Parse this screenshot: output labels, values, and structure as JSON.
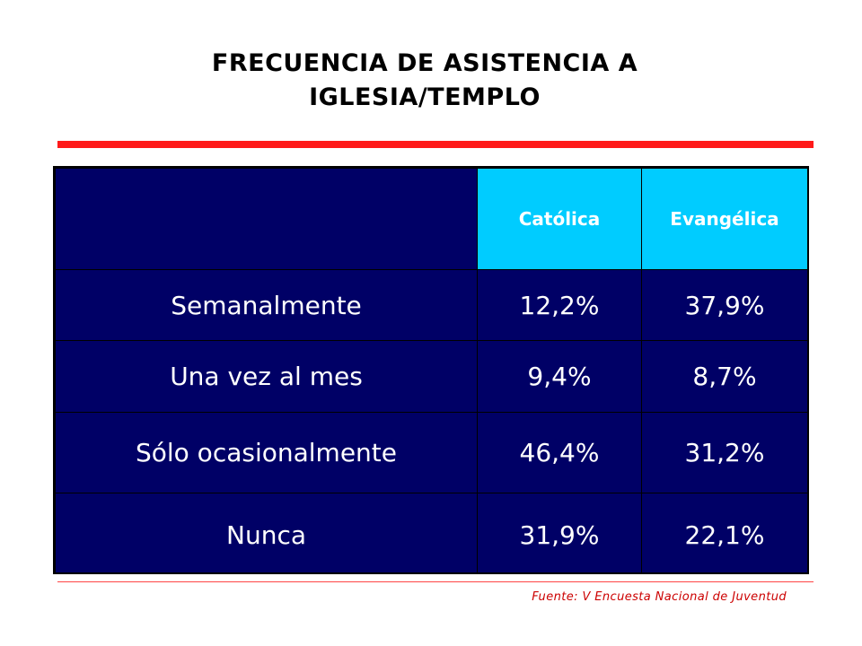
{
  "slide": {
    "title_line1": "FRECUENCIA DE ASISTENCIA A",
    "title_line2": "IGLESIA/TEMPLO",
    "source": "Fuente: V Encuesta Nacional de Juventud"
  },
  "table": {
    "headers": [
      "",
      "Católica",
      "Evangélica"
    ],
    "rows": [
      {
        "label": "Semanalmente",
        "catolica": "12,2%",
        "evangelica": "37,9%"
      },
      {
        "label": "Una vez al mes",
        "catolica": "9,4%",
        "evangelica": "8,7%"
      },
      {
        "label": "Sólo ocasionalmente",
        "catolica": "46,4%",
        "evangelica": "31,2%"
      },
      {
        "label": "Nunca",
        "catolica": "31,9%",
        "evangelica": "22,1%"
      }
    ]
  },
  "colors": {
    "table_bg": "#000066",
    "header_bg": "#00ccff",
    "accent_red": "#ff1a1a",
    "source_text": "#cc0000"
  }
}
